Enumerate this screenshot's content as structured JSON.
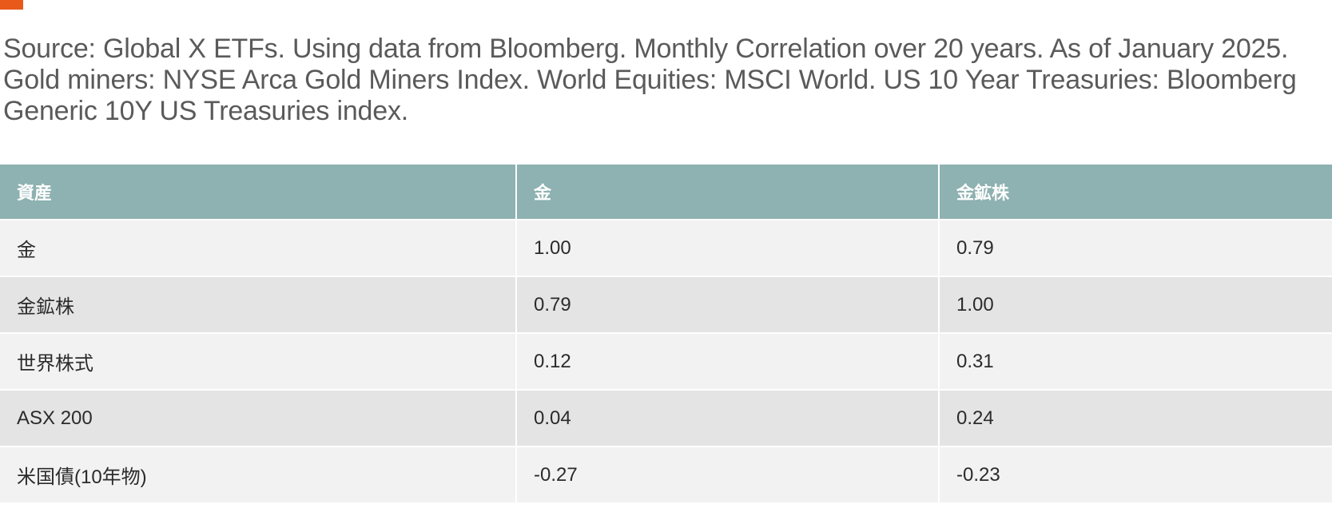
{
  "source_note": "Source: Global X ETFs. Using data from Bloomberg. Monthly Correlation over 20 years. As of January 2025. Gold miners: NYSE Arca Gold Miners Index. World Equities: MSCI World. US 10 Year Treasuries: Bloomberg Generic 10Y US Treasuries index.",
  "colors": {
    "accent": "#e8591a",
    "header_bg": "#8eb1b1",
    "row_light": "#f2f2f2",
    "row_dark": "#e4e4e4",
    "note_text": "#5a5a5a"
  },
  "table": {
    "headers": [
      "資産",
      "金",
      "金鉱株"
    ],
    "rows": [
      {
        "asset": "金",
        "gold": "1.00",
        "gold_miners": "0.79"
      },
      {
        "asset": "金鉱株",
        "gold": "0.79",
        "gold_miners": "1.00"
      },
      {
        "asset": "世界株式",
        "gold": "0.12",
        "gold_miners": "0.31"
      },
      {
        "asset": "ASX 200",
        "gold": "0.04",
        "gold_miners": "0.24"
      },
      {
        "asset": "米国債(10年物)",
        "gold": "-0.27",
        "gold_miners": "-0.23"
      }
    ]
  }
}
